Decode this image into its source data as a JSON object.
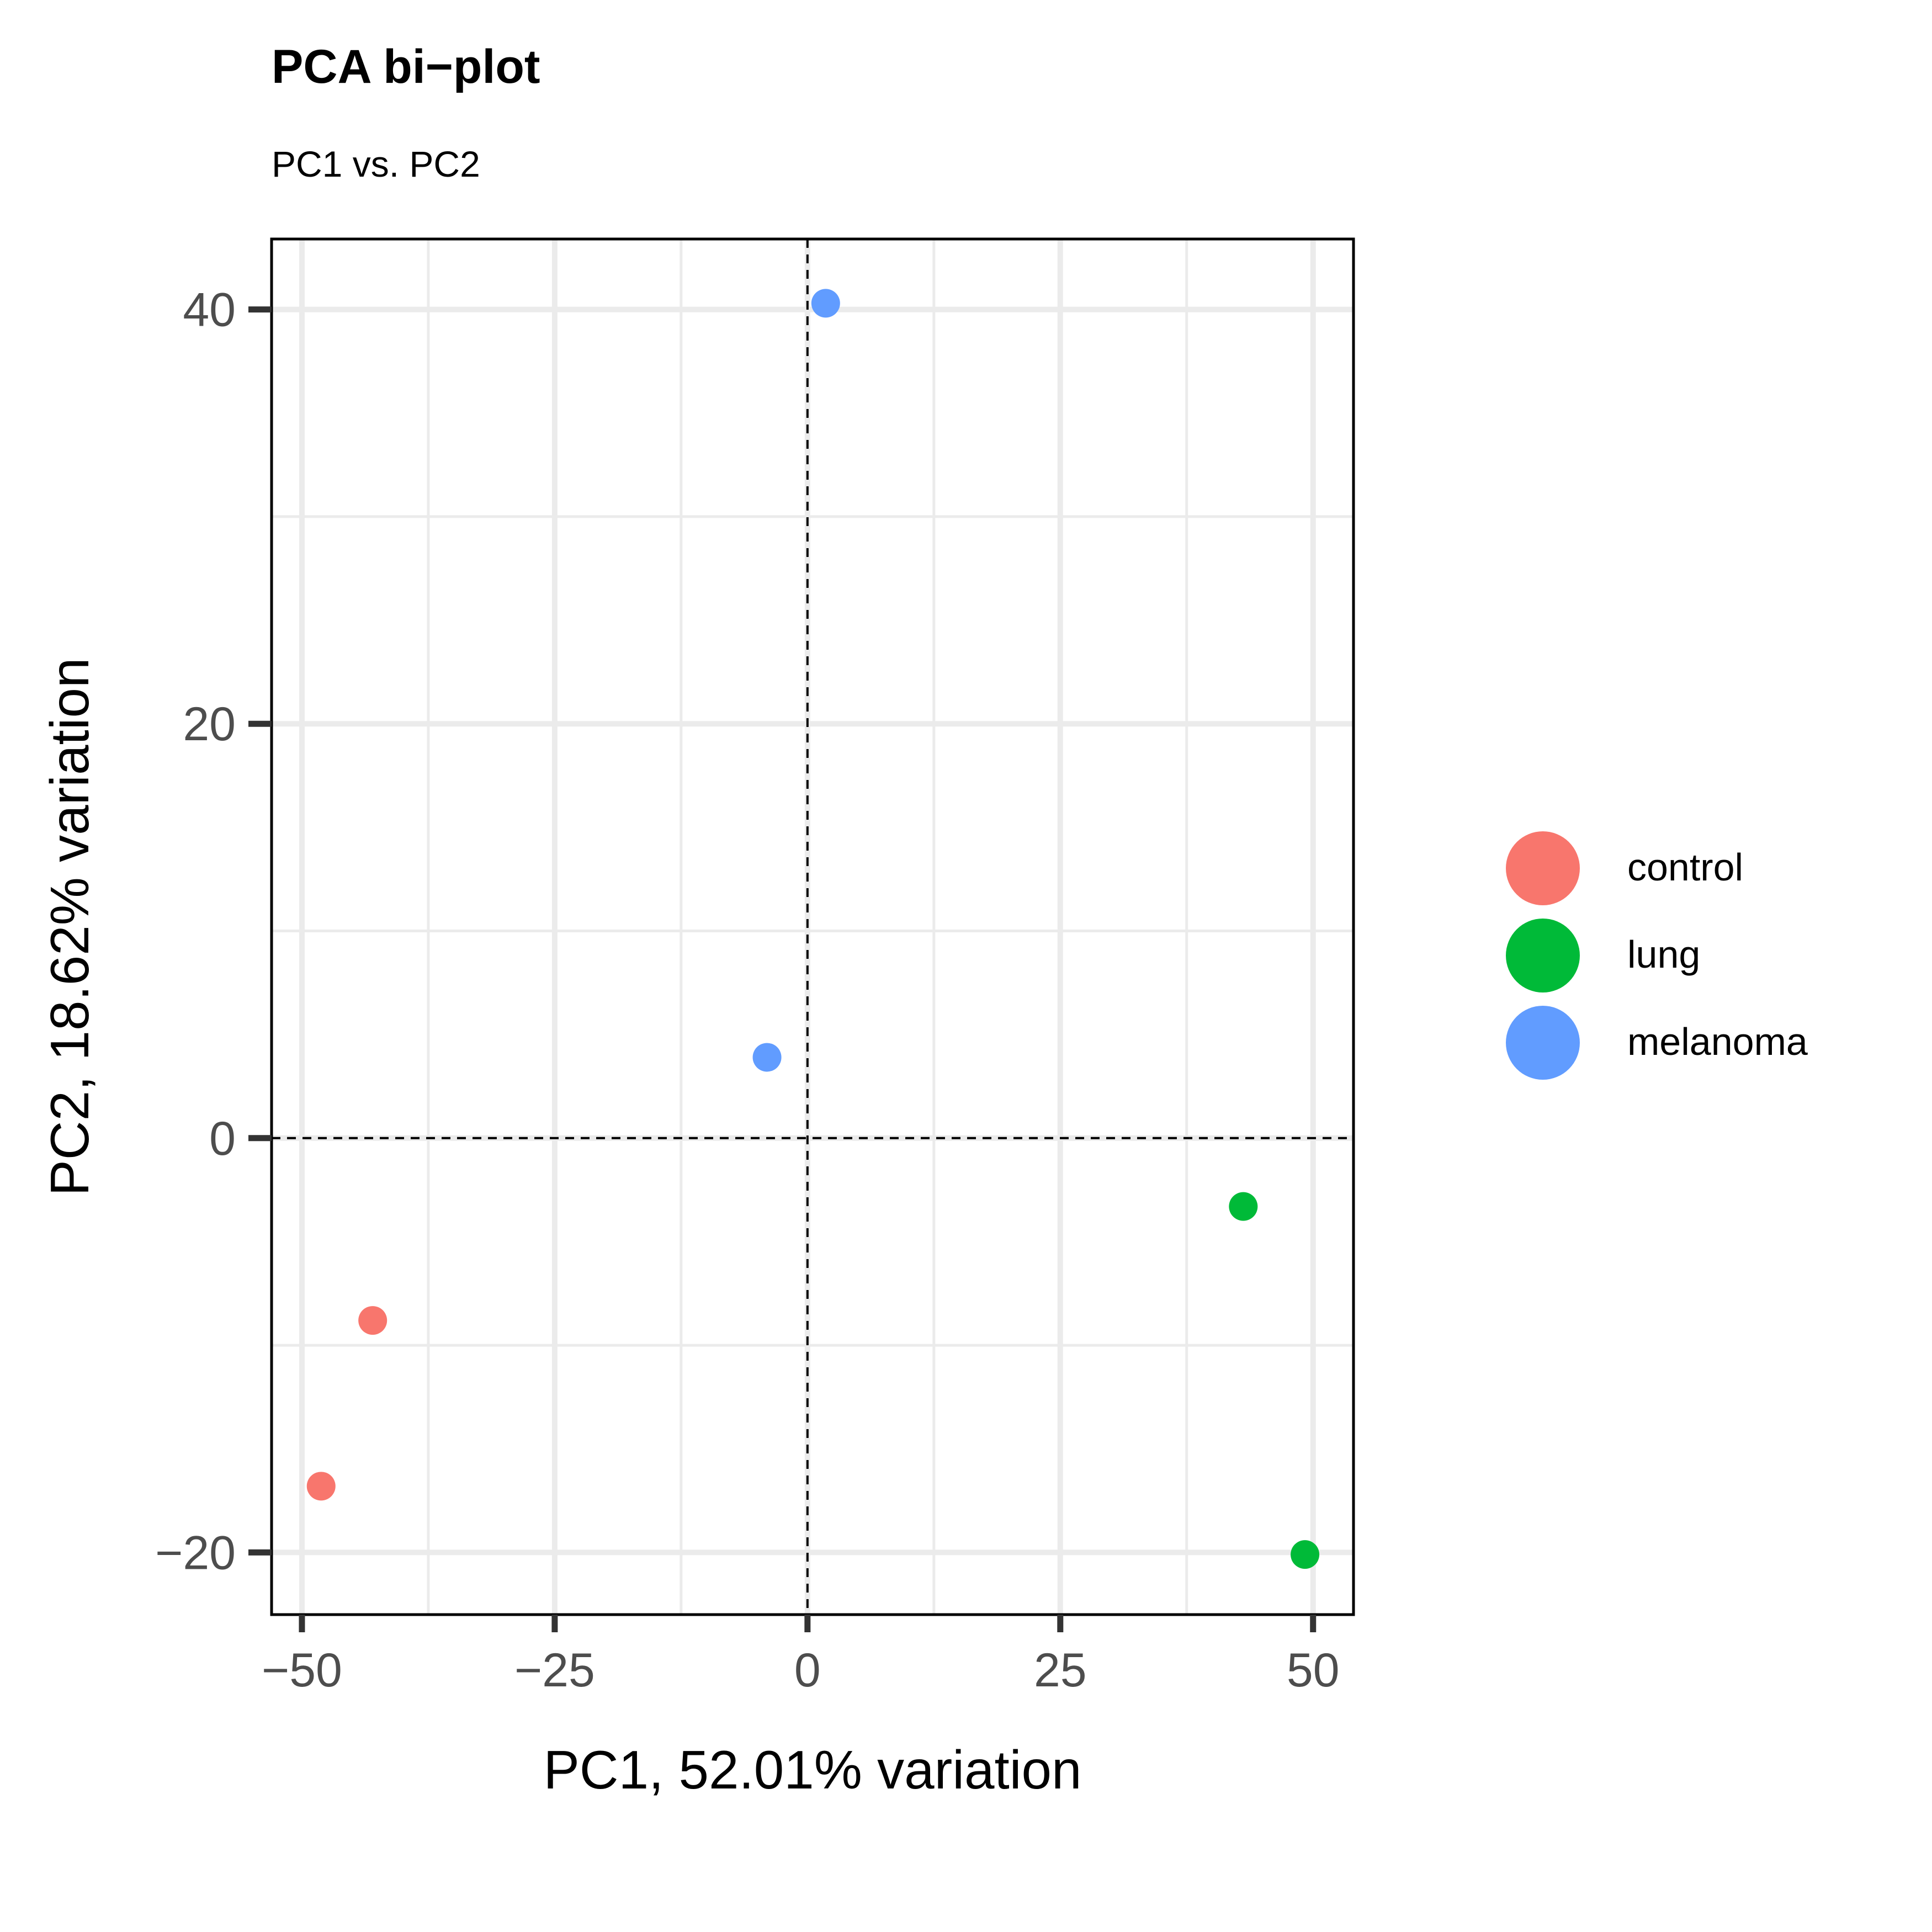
{
  "chart_data": {
    "type": "scatter",
    "title": "PCA bi−plot",
    "subtitle": "PC1 vs. PC2",
    "xlabel": "PC1, 52.01% variation",
    "ylabel": "PC2, 18.62% variation",
    "xlim": [
      -53,
      54
    ],
    "ylim": [
      -23,
      43.4
    ],
    "x_ticks": [
      -50,
      -25,
      0,
      25,
      50
    ],
    "x_tick_labels": [
      "−50",
      "−25",
      "0",
      "25",
      "50"
    ],
    "y_ticks": [
      -20,
      0,
      20,
      40
    ],
    "y_tick_labels": [
      "−20",
      "0",
      "20",
      "40"
    ],
    "x_minor_gridlines": [
      -37.5,
      -12.5,
      12.5,
      37.5
    ],
    "y_minor_gridlines": [
      -10,
      10,
      30
    ],
    "reference_lines": {
      "x": 0,
      "y": 0,
      "style": "dashed"
    },
    "grid": true,
    "legend_position": "right",
    "series": [
      {
        "name": "control",
        "color": "#F8766D",
        "points": [
          {
            "x": -48.1,
            "y": -16.8
          },
          {
            "x": -43.0,
            "y": -8.8
          }
        ]
      },
      {
        "name": "lung",
        "color": "#00BA38",
        "points": [
          {
            "x": 43.1,
            "y": -3.3
          },
          {
            "x": 49.2,
            "y": -20.1
          }
        ]
      },
      {
        "name": "melanoma",
        "color": "#619CFF",
        "points": [
          {
            "x": 1.8,
            "y": 40.3
          },
          {
            "x": -4.0,
            "y": 3.9
          }
        ]
      }
    ]
  }
}
